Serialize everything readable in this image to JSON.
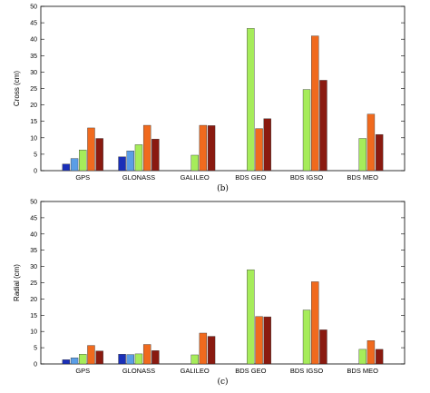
{
  "colors": [
    "#1a2fb8",
    "#5b9ee6",
    "#a6ec5a",
    "#f06a1e",
    "#8a1a10"
  ],
  "chart_data": [
    {
      "type": "bar",
      "caption": "(b)",
      "ylabel": "Cross (cm)",
      "ylim": [
        0,
        50
      ],
      "yticks": [
        0,
        5,
        10,
        15,
        20,
        25,
        30,
        35,
        40,
        45,
        50
      ],
      "categories": [
        "GPS",
        "GLONASS",
        "GALILEO",
        "BDS GEO",
        "BDS IGSO",
        "BDS MEO"
      ],
      "series": [
        {
          "values": [
            2.0,
            4.2,
            0,
            0,
            0,
            0
          ]
        },
        {
          "values": [
            3.7,
            6.0,
            0,
            0,
            0,
            0
          ]
        },
        {
          "values": [
            6.3,
            7.9,
            4.7,
            43.3,
            24.7,
            9.8
          ]
        },
        {
          "values": [
            13.0,
            13.8,
            13.8,
            12.8,
            41.0,
            17.2
          ]
        },
        {
          "values": [
            9.8,
            9.6,
            13.7,
            15.8,
            27.5,
            11.0
          ]
        }
      ]
    },
    {
      "type": "bar",
      "caption": "(c)",
      "ylabel": "Radial (cm)",
      "ylim": [
        0,
        50
      ],
      "yticks": [
        0,
        5,
        10,
        15,
        20,
        25,
        30,
        35,
        40,
        45,
        50
      ],
      "categories": [
        "GPS",
        "GLONASS",
        "GALILEO",
        "BDS GEO",
        "BDS IGSO",
        "BDS MEO"
      ],
      "series": [
        {
          "values": [
            1.3,
            3.0,
            0,
            0,
            0,
            0
          ]
        },
        {
          "values": [
            1.9,
            2.9,
            0,
            0,
            0,
            0
          ]
        },
        {
          "values": [
            3.0,
            3.1,
            2.8,
            29.0,
            16.6,
            4.5
          ]
        },
        {
          "values": [
            5.7,
            6.0,
            9.5,
            14.6,
            25.3,
            7.2
          ]
        },
        {
          "values": [
            4.0,
            4.1,
            8.5,
            14.5,
            10.5,
            4.5
          ]
        }
      ]
    }
  ]
}
